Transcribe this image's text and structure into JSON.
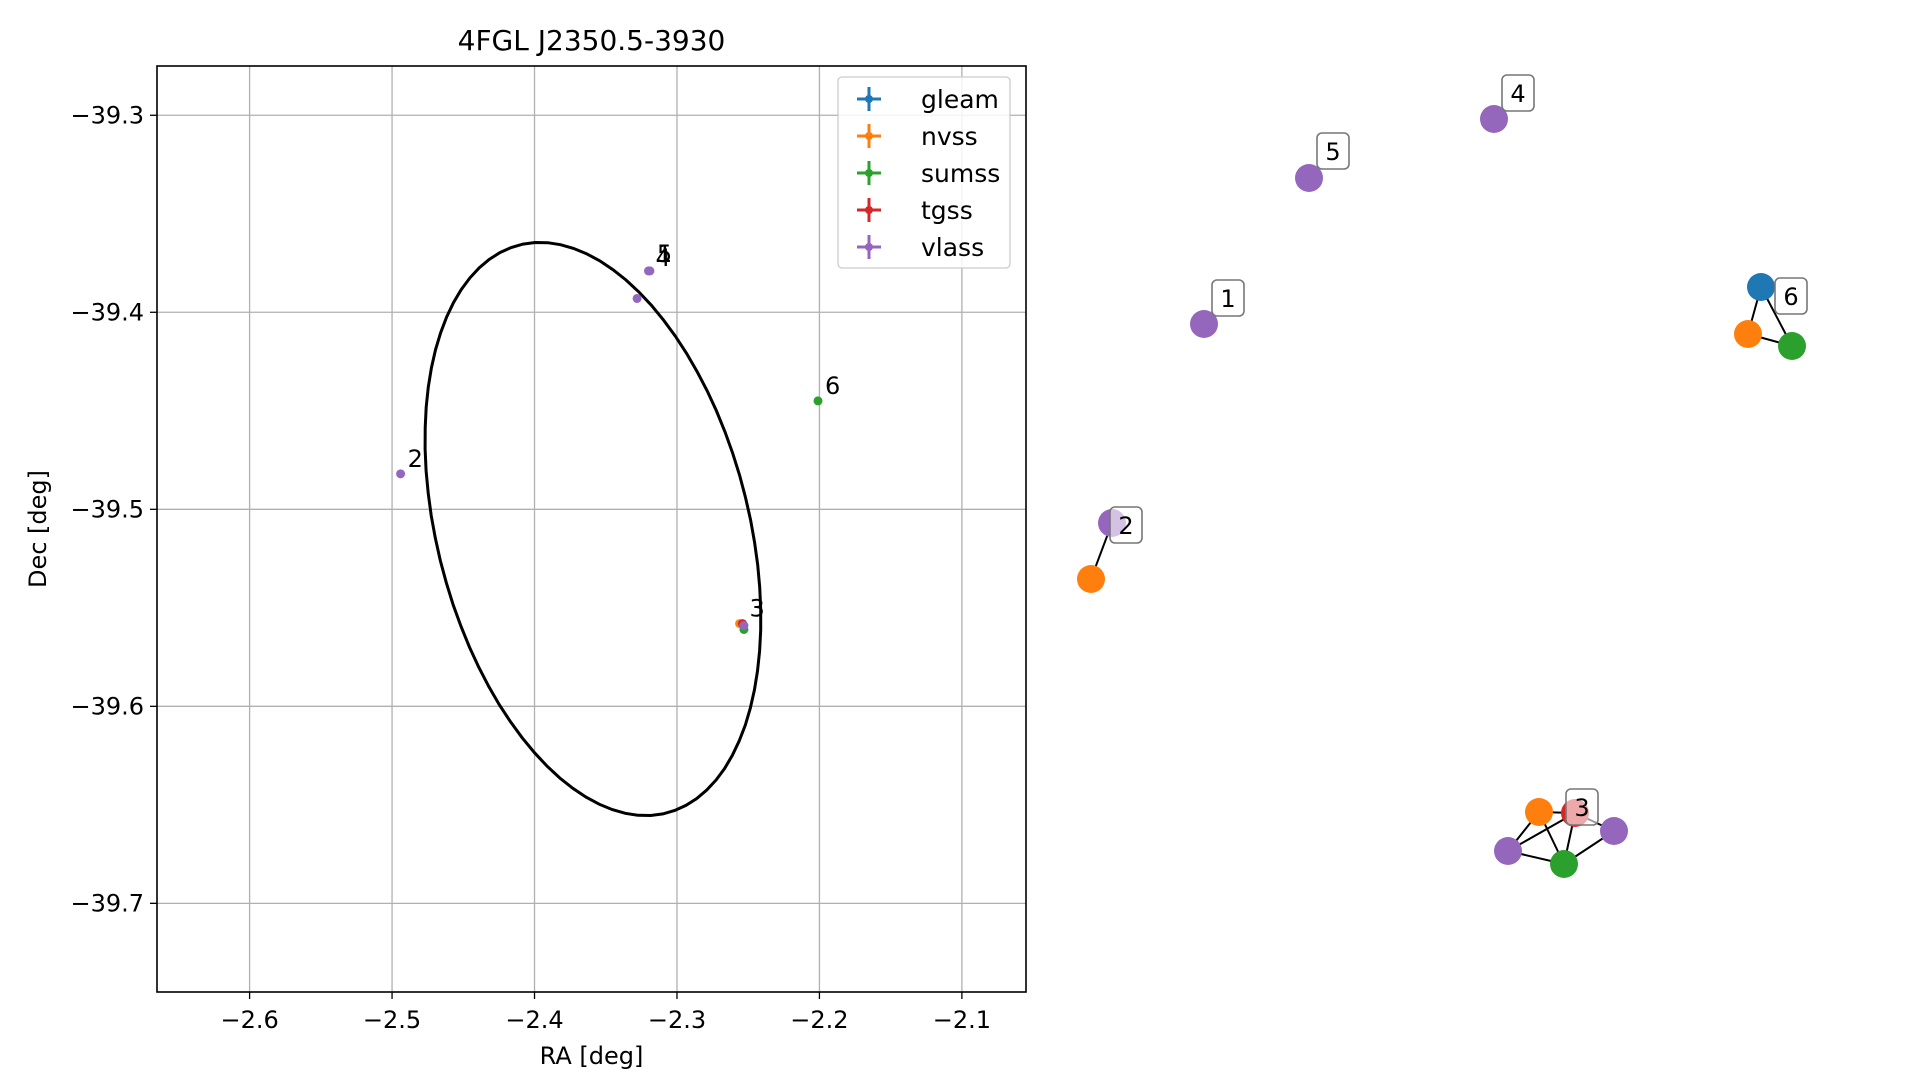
{
  "chart_data": [
    {
      "type": "scatter",
      "title": "4FGL J2350.5-3930",
      "xlabel": "RA [deg]",
      "ylabel": "Dec [deg]",
      "xlim": [
        -2.665,
        -2.055
      ],
      "ylim": [
        -39.745,
        -39.275
      ],
      "xticks": [
        -2.6,
        -2.5,
        -2.4,
        -2.3,
        -2.2,
        -2.1
      ],
      "xtick_labels": [
        "−2.6",
        "−2.5",
        "−2.4",
        "−2.3",
        "−2.2",
        "−2.1"
      ],
      "yticks": [
        -39.3,
        -39.4,
        -39.5,
        -39.6,
        -39.7
      ],
      "ytick_labels": [
        "−39.3",
        "−39.4",
        "−39.5",
        "−39.6",
        "−39.7"
      ],
      "grid": true,
      "legend_position": "top-right",
      "series": [
        {
          "name": "gleam",
          "color": "#1f77b4",
          "points": []
        },
        {
          "name": "nvss",
          "color": "#ff7f0e",
          "points": [
            [
              -2.256,
              -39.558
            ]
          ]
        },
        {
          "name": "sumss",
          "color": "#2ca02c",
          "points": [
            [
              -2.253,
              -39.561
            ],
            [
              -2.201,
              -39.445
            ]
          ]
        },
        {
          "name": "tgss",
          "color": "#d62728",
          "points": [
            [
              -2.254,
              -39.558
            ]
          ]
        },
        {
          "name": "vlass",
          "color": "#9467bd",
          "points": [
            [
              -2.328,
              -39.393
            ],
            [
              -2.494,
              -39.482
            ],
            [
              -2.253,
              -39.559
            ],
            [
              -2.32,
              -39.379
            ],
            [
              -2.319,
              -39.379
            ]
          ]
        }
      ],
      "ellipse": {
        "center": [
          -2.359,
          -39.51
        ],
        "semi_major": 0.155,
        "semi_minor": 0.105,
        "tilt_deg_from_vertical": 28,
        "color": "#000000"
      },
      "annotations": [
        {
          "text": "1",
          "x": -2.319,
          "y": -39.378
        },
        {
          "text": "2",
          "x": -2.494,
          "y": -39.482
        },
        {
          "text": "3",
          "x": -2.254,
          "y": -39.558
        },
        {
          "text": "4",
          "x": -2.32,
          "y": -39.38
        },
        {
          "text": "5",
          "x": -2.319,
          "y": -39.378
        },
        {
          "text": "6",
          "x": -2.201,
          "y": -39.445
        }
      ]
    },
    {
      "type": "network",
      "nodes": [
        {
          "id": "n1",
          "color": "#9467bd",
          "label": "1"
        },
        {
          "id": "n2",
          "color": "#9467bd",
          "label": "2"
        },
        {
          "id": "n2b",
          "color": "#ff7f0e"
        },
        {
          "id": "n4",
          "color": "#9467bd",
          "label": "4"
        },
        {
          "id": "n5",
          "color": "#9467bd",
          "label": "5"
        },
        {
          "id": "n6a",
          "color": "#1f77b4",
          "label": "6"
        },
        {
          "id": "n6b",
          "color": "#ff7f0e"
        },
        {
          "id": "n6c",
          "color": "#2ca02c"
        },
        {
          "id": "n3a",
          "color": "#ff7f0e"
        },
        {
          "id": "n3b",
          "color": "#d62728",
          "label": "3"
        },
        {
          "id": "n3c",
          "color": "#9467bd"
        },
        {
          "id": "n3d",
          "color": "#9467bd"
        },
        {
          "id": "n3e",
          "color": "#2ca02c"
        }
      ],
      "edges": [
        [
          "n2",
          "n2b"
        ],
        [
          "n6a",
          "n6b"
        ],
        [
          "n6a",
          "n6c"
        ],
        [
          "n6b",
          "n6c"
        ],
        [
          "n3a",
          "n3b"
        ],
        [
          "n3a",
          "n3d"
        ],
        [
          "n3a",
          "n3e"
        ],
        [
          "n3b",
          "n3c"
        ],
        [
          "n3b",
          "n3d"
        ],
        [
          "n3b",
          "n3e"
        ],
        [
          "n3d",
          "n3e"
        ],
        [
          "n3e",
          "n3c"
        ]
      ]
    }
  ]
}
